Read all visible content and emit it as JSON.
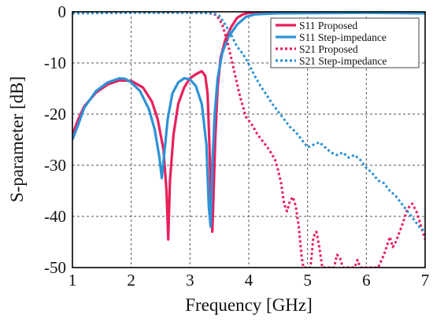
{
  "chart_data": {
    "type": "line",
    "title": "",
    "xlabel": "Frequency [GHz]",
    "ylabel": "S-parameter [dB]",
    "xlim": [
      1,
      7
    ],
    "ylim": [
      -50,
      0
    ],
    "xticks": [
      1,
      2,
      3,
      4,
      5,
      6,
      7
    ],
    "yticks": [
      0,
      -10,
      -20,
      -30,
      -40,
      -50
    ],
    "xtick_labels": [
      "1",
      "2",
      "3",
      "4",
      "5",
      "6",
      "7"
    ],
    "ytick_labels": [
      "0",
      "-10",
      "-20",
      "-30",
      "-40",
      "-50"
    ],
    "grid": true,
    "grid_style": "dashed",
    "legend_position": "top-right",
    "series": [
      {
        "name": "S11 Proposed",
        "color": "#e8205c",
        "style": "solid",
        "points": [
          [
            1.0,
            -24.0
          ],
          [
            1.1,
            -21.0
          ],
          [
            1.2,
            -18.5
          ],
          [
            1.4,
            -15.8
          ],
          [
            1.6,
            -14.2
          ],
          [
            1.8,
            -13.4
          ],
          [
            2.0,
            -13.5
          ],
          [
            2.2,
            -14.8
          ],
          [
            2.35,
            -17.5
          ],
          [
            2.45,
            -21.0
          ],
          [
            2.55,
            -27.0
          ],
          [
            2.6,
            -35.0
          ],
          [
            2.63,
            -44.5
          ],
          [
            2.66,
            -33.0
          ],
          [
            2.72,
            -24.0
          ],
          [
            2.8,
            -18.0
          ],
          [
            2.9,
            -14.8
          ],
          [
            3.0,
            -13.0
          ],
          [
            3.1,
            -12.2
          ],
          [
            3.2,
            -11.6
          ],
          [
            3.26,
            -12.5
          ],
          [
            3.3,
            -16.0
          ],
          [
            3.33,
            -26.0
          ],
          [
            3.36,
            -38.0
          ],
          [
            3.38,
            -43.0
          ],
          [
            3.4,
            -36.0
          ],
          [
            3.43,
            -25.0
          ],
          [
            3.47,
            -15.0
          ],
          [
            3.52,
            -9.0
          ],
          [
            3.6,
            -5.5
          ],
          [
            3.7,
            -3.0
          ],
          [
            3.8,
            -1.2
          ],
          [
            3.9,
            -0.5
          ],
          [
            4.0,
            -0.2
          ],
          [
            4.5,
            -0.1
          ],
          [
            5.0,
            -0.1
          ],
          [
            6.0,
            -0.1
          ],
          [
            7.0,
            -0.3
          ]
        ]
      },
      {
        "name": "S11 Step-impedance",
        "color": "#2e92d6",
        "style": "solid",
        "points": [
          [
            1.0,
            -25.0
          ],
          [
            1.1,
            -22.0
          ],
          [
            1.2,
            -18.8
          ],
          [
            1.4,
            -15.5
          ],
          [
            1.6,
            -13.8
          ],
          [
            1.8,
            -13.0
          ],
          [
            1.9,
            -13.1
          ],
          [
            2.0,
            -13.8
          ],
          [
            2.15,
            -15.5
          ],
          [
            2.3,
            -19.0
          ],
          [
            2.4,
            -23.0
          ],
          [
            2.48,
            -28.5
          ],
          [
            2.52,
            -32.5
          ],
          [
            2.56,
            -28.0
          ],
          [
            2.62,
            -21.0
          ],
          [
            2.7,
            -16.0
          ],
          [
            2.8,
            -13.8
          ],
          [
            2.9,
            -13.0
          ],
          [
            3.0,
            -13.2
          ],
          [
            3.1,
            -14.5
          ],
          [
            3.2,
            -18.0
          ],
          [
            3.28,
            -26.0
          ],
          [
            3.32,
            -38.0
          ],
          [
            3.35,
            -42.0
          ],
          [
            3.38,
            -30.0
          ],
          [
            3.42,
            -20.0
          ],
          [
            3.47,
            -13.0
          ],
          [
            3.55,
            -8.0
          ],
          [
            3.65,
            -5.0
          ],
          [
            3.8,
            -2.5
          ],
          [
            3.95,
            -1.0
          ],
          [
            4.1,
            -0.5
          ],
          [
            4.5,
            -0.3
          ],
          [
            6.0,
            -0.2
          ],
          [
            7.0,
            -0.3
          ]
        ]
      },
      {
        "name": "S21 Proposed",
        "color": "#e8205c",
        "style": "dotted",
        "points": [
          [
            1.0,
            -0.2
          ],
          [
            2.0,
            -0.1
          ],
          [
            3.0,
            -0.1
          ],
          [
            3.3,
            -0.2
          ],
          [
            3.45,
            -0.6
          ],
          [
            3.55,
            -2.5
          ],
          [
            3.65,
            -6.5
          ],
          [
            3.75,
            -11.5
          ],
          [
            3.85,
            -16.5
          ],
          [
            3.95,
            -20.5
          ],
          [
            4.05,
            -22.0
          ],
          [
            4.15,
            -24.0
          ],
          [
            4.25,
            -25.5
          ],
          [
            4.35,
            -27.0
          ],
          [
            4.45,
            -29.0
          ],
          [
            4.5,
            -31.0
          ],
          [
            4.55,
            -33.5
          ],
          [
            4.6,
            -37.5
          ],
          [
            4.65,
            -39.0
          ],
          [
            4.7,
            -37.0
          ],
          [
            4.75,
            -36.2
          ],
          [
            4.8,
            -38.0
          ],
          [
            4.85,
            -42.0
          ],
          [
            4.9,
            -48.0
          ],
          [
            4.93,
            -50.0
          ],
          [
            5.05,
            -50.0
          ],
          [
            5.1,
            -44.0
          ],
          [
            5.15,
            -43.0
          ],
          [
            5.2,
            -46.0
          ],
          [
            5.25,
            -50.0
          ],
          [
            5.45,
            -50.0
          ],
          [
            5.5,
            -47.5
          ],
          [
            5.55,
            -48.0
          ],
          [
            5.6,
            -50.0
          ],
          [
            5.8,
            -50.0
          ],
          [
            5.85,
            -48.5
          ],
          [
            5.9,
            -50.0
          ],
          [
            6.2,
            -50.0
          ],
          [
            6.3,
            -47.5
          ],
          [
            6.4,
            -44.0
          ],
          [
            6.45,
            -46.0
          ],
          [
            6.5,
            -45.0
          ],
          [
            6.6,
            -42.0
          ],
          [
            6.7,
            -38.5
          ],
          [
            6.78,
            -37.5
          ],
          [
            6.85,
            -39.0
          ],
          [
            6.92,
            -41.5
          ],
          [
            7.0,
            -44.5
          ]
        ]
      },
      {
        "name": "S21 Step-impedance",
        "color": "#2e92d6",
        "style": "dotted",
        "points": [
          [
            1.0,
            -0.3
          ],
          [
            2.0,
            -0.2
          ],
          [
            3.0,
            -0.2
          ],
          [
            3.4,
            -0.3
          ],
          [
            3.5,
            -0.8
          ],
          [
            3.6,
            -2.5
          ],
          [
            3.7,
            -4.5
          ],
          [
            3.8,
            -6.8
          ],
          [
            3.9,
            -8.2
          ],
          [
            4.0,
            -10.2
          ],
          [
            4.1,
            -12.5
          ],
          [
            4.2,
            -14.5
          ],
          [
            4.3,
            -16.2
          ],
          [
            4.4,
            -18.0
          ],
          [
            4.5,
            -19.5
          ],
          [
            4.6,
            -21.0
          ],
          [
            4.7,
            -22.5
          ],
          [
            4.8,
            -23.5
          ],
          [
            4.9,
            -25.0
          ],
          [
            5.0,
            -26.5
          ],
          [
            5.1,
            -26.0
          ],
          [
            5.2,
            -25.5
          ],
          [
            5.3,
            -26.5
          ],
          [
            5.4,
            -27.5
          ],
          [
            5.5,
            -28.0
          ],
          [
            5.6,
            -27.5
          ],
          [
            5.7,
            -28.5
          ],
          [
            5.8,
            -28.0
          ],
          [
            5.9,
            -29.0
          ],
          [
            6.0,
            -30.5
          ],
          [
            6.1,
            -31.5
          ],
          [
            6.2,
            -33.0
          ],
          [
            6.3,
            -33.5
          ],
          [
            6.4,
            -35.0
          ],
          [
            6.5,
            -36.0
          ],
          [
            6.6,
            -37.5
          ],
          [
            6.7,
            -39.0
          ],
          [
            6.8,
            -40.5
          ],
          [
            6.9,
            -42.0
          ],
          [
            7.0,
            -43.0
          ]
        ]
      }
    ]
  }
}
